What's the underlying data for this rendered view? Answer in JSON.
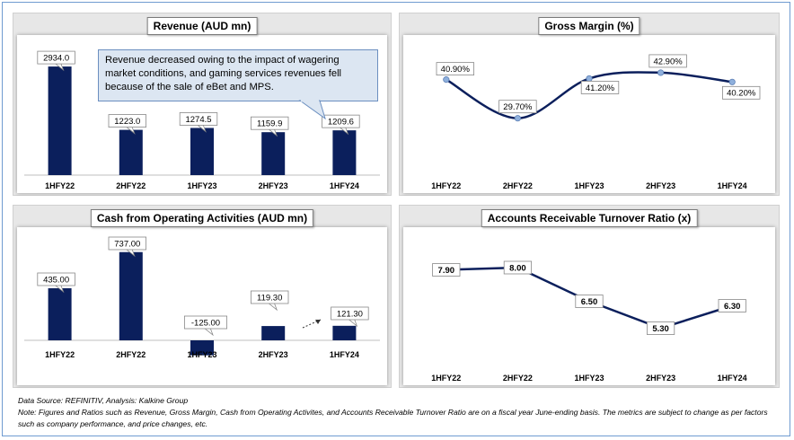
{
  "colors": {
    "bar": "#0b1f5c",
    "line": "#0b1f5c",
    "panel_bg": "#e7e7e7",
    "callout_bg": "#dce6f2"
  },
  "chart_data": [
    {
      "type": "bar",
      "title": "Revenue (AUD mn)",
      "categories": [
        "1HFY22",
        "2HFY22",
        "1HFY23",
        "2HFY23",
        "1HFY24"
      ],
      "values": [
        2934.0,
        1223.0,
        1274.5,
        1159.9,
        1209.6
      ],
      "labels": [
        "2934.0",
        "1223.0",
        "1274.5",
        "1159.9",
        "1209.6"
      ],
      "ylim": [
        0,
        3300
      ],
      "annotation": "Revenue decreased owing to the impact of wagering market conditions, and gaming services revenues fell because of the sale of eBet and MPS."
    },
    {
      "type": "line",
      "title": "Gross Margin (%)",
      "categories": [
        "1HFY22",
        "2HFY22",
        "1HFY23",
        "2HFY23",
        "1HFY24"
      ],
      "values": [
        40.9,
        29.7,
        41.2,
        42.9,
        40.2
      ],
      "labels": [
        "40.90%",
        "29.70%",
        "41.20%",
        "42.90%",
        "40.20%"
      ],
      "ylim": [
        20,
        46
      ]
    },
    {
      "type": "bar",
      "title": "Cash from Operating Activities  (AUD mn)",
      "categories": [
        "1HFY22",
        "2HFY22",
        "1HFY23",
        "2HFY23",
        "1HFY24"
      ],
      "values": [
        435.0,
        737.0,
        -125.0,
        119.3,
        121.3
      ],
      "labels": [
        "435.00",
        "737.00",
        "-125.00",
        "119.30",
        "121.30"
      ],
      "ylim": [
        -150,
        780
      ]
    },
    {
      "type": "line",
      "title": "Accounts Receivable Turnover Ratio (x)",
      "categories": [
        "1HFY22",
        "2HFY22",
        "1HFY23",
        "2HFY23",
        "1HFY24"
      ],
      "values": [
        7.9,
        8.0,
        6.5,
        5.3,
        6.3
      ],
      "labels": [
        "7.90",
        "8.00",
        "6.50",
        "5.30",
        "6.30"
      ],
      "ylim": [
        4.2,
        8.6
      ]
    }
  ],
  "footer": {
    "source": "Data Source: REFINITIV, Analysis: Kalkine Group",
    "note": "Note: Figures and Ratios such as Revenue, Gross Margin, Cash from Operating Activites, and Accounts Receivable Turnover Ratio are on a fiscal year June-ending basis. The metrics are subject to change as per factors such as company performance, and price changes, etc."
  }
}
